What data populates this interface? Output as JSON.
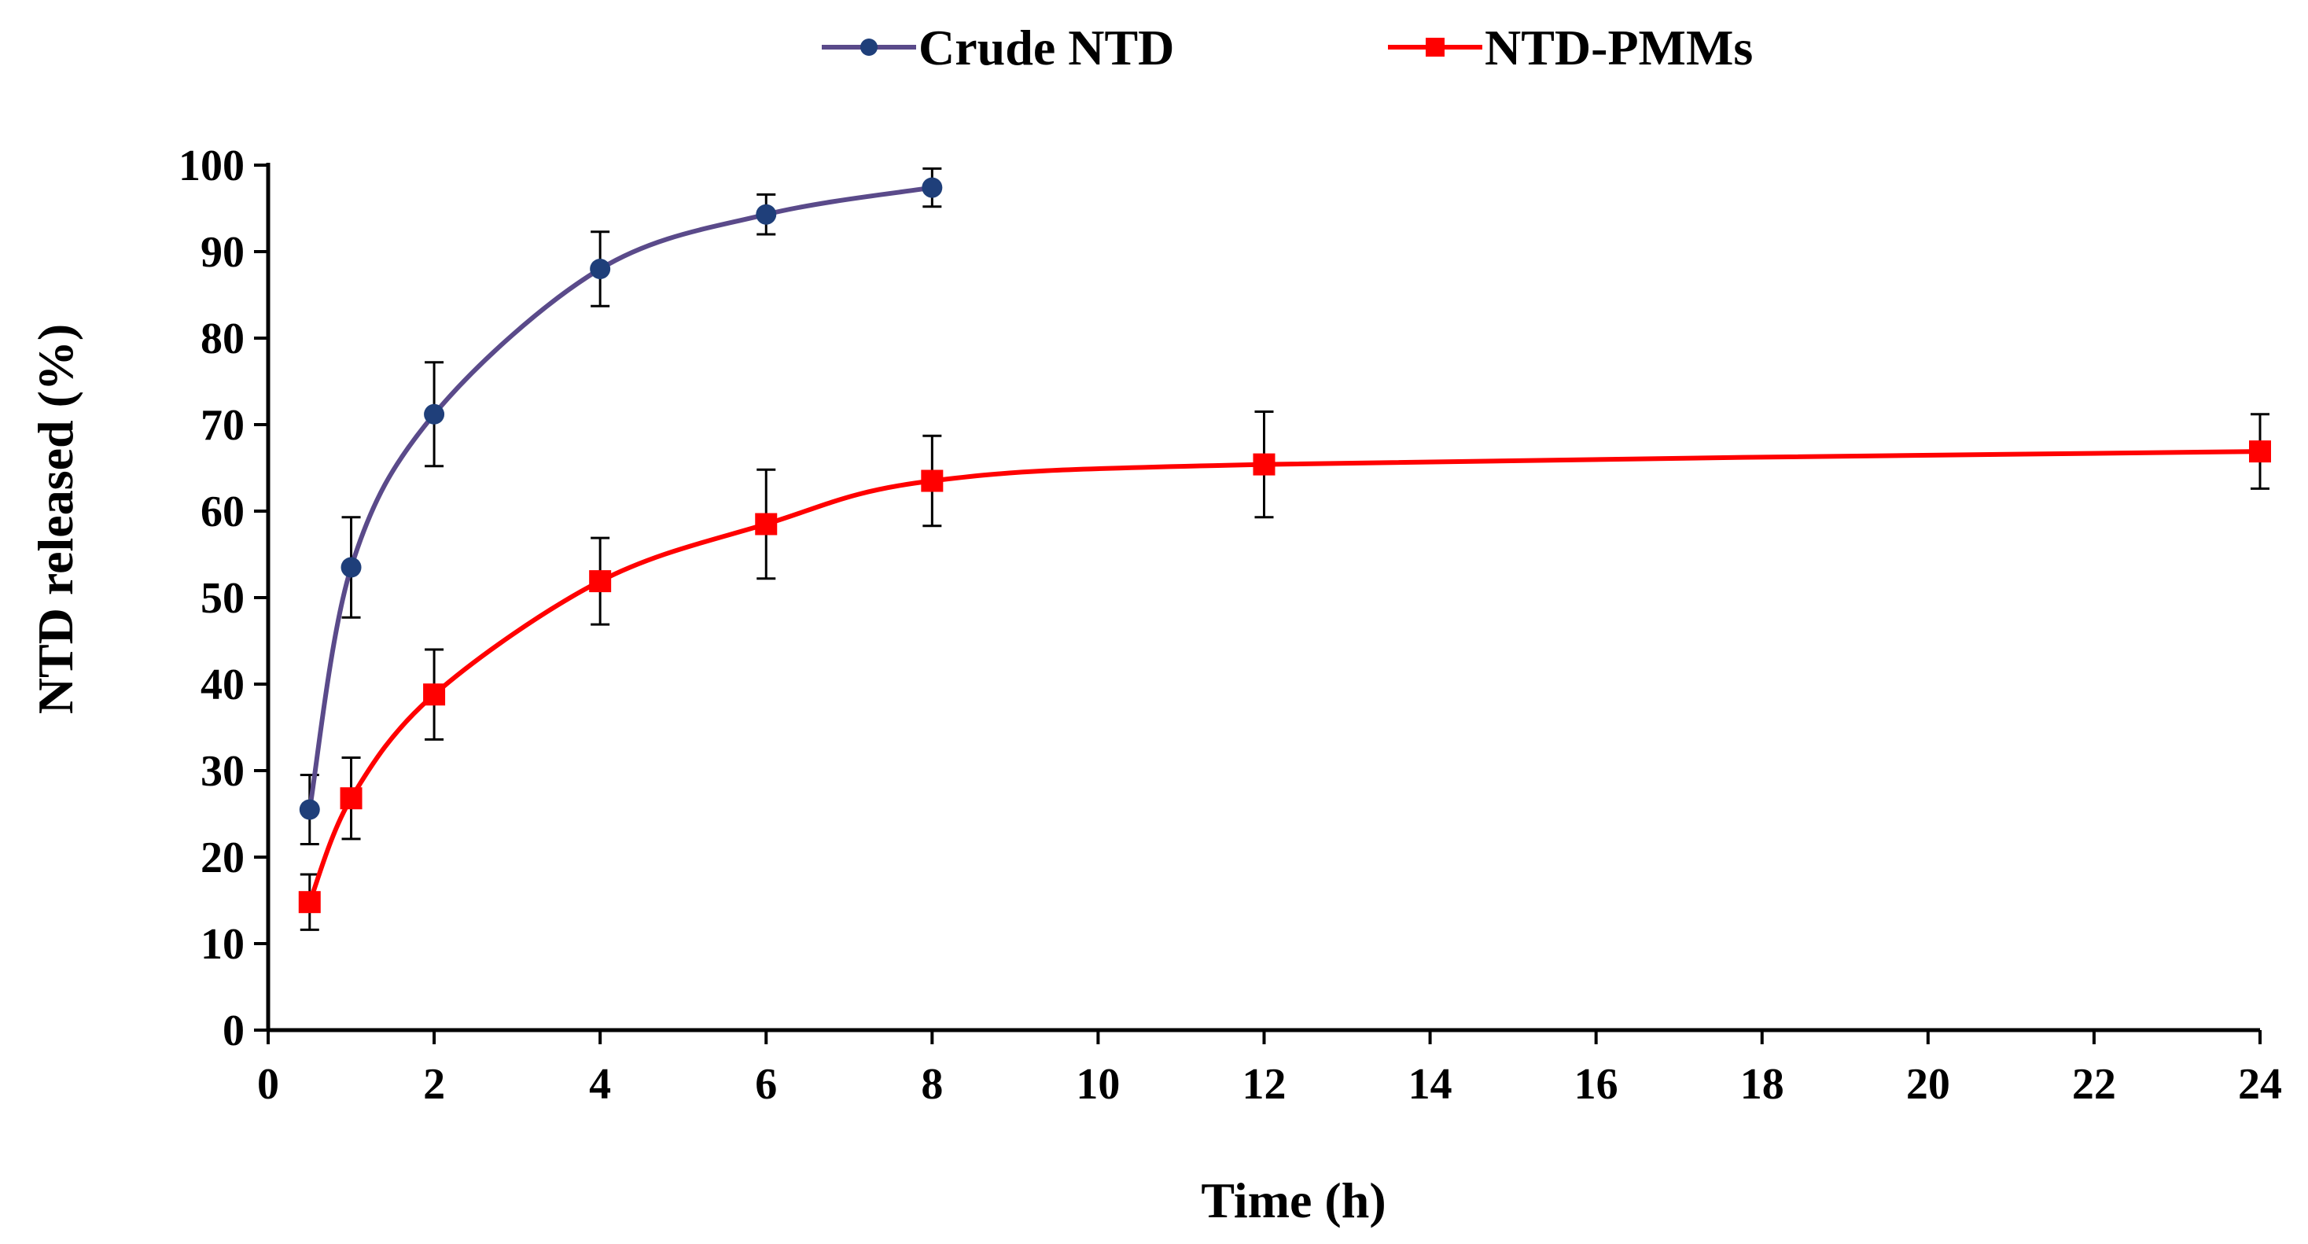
{
  "chart_data": {
    "type": "line",
    "title": "",
    "xlabel": "Time (h)",
    "ylabel": "NTD released (%)",
    "xlim": [
      0,
      24
    ],
    "ylim": [
      0,
      100
    ],
    "x_ticks": [
      0,
      2,
      4,
      6,
      8,
      10,
      12,
      14,
      16,
      18,
      20,
      22,
      24
    ],
    "y_ticks": [
      0,
      10,
      20,
      30,
      40,
      50,
      60,
      70,
      80,
      90,
      100
    ],
    "grid": false,
    "legend_position": "top-center",
    "series": [
      {
        "name": "Crude NTD",
        "color": "#5a4a8a",
        "marker": "circle",
        "marker_color": "#1f3f7a",
        "x": [
          0.5,
          1,
          2,
          4,
          6,
          8
        ],
        "y": [
          25.5,
          53.5,
          71.2,
          88.0,
          94.3,
          97.4
        ],
        "error": [
          4.0,
          5.8,
          6.0,
          4.3,
          2.3,
          2.2
        ]
      },
      {
        "name": "NTD-PMMs",
        "color": "#ff0000",
        "marker": "square",
        "marker_color": "#ff0000",
        "x": [
          0.5,
          1,
          2,
          4,
          6,
          8,
          12,
          24
        ],
        "y": [
          14.8,
          26.8,
          38.8,
          51.9,
          58.5,
          63.5,
          65.4,
          66.9
        ],
        "error": [
          3.2,
          4.7,
          5.2,
          5.0,
          6.3,
          5.2,
          6.1,
          4.3
        ]
      }
    ]
  }
}
